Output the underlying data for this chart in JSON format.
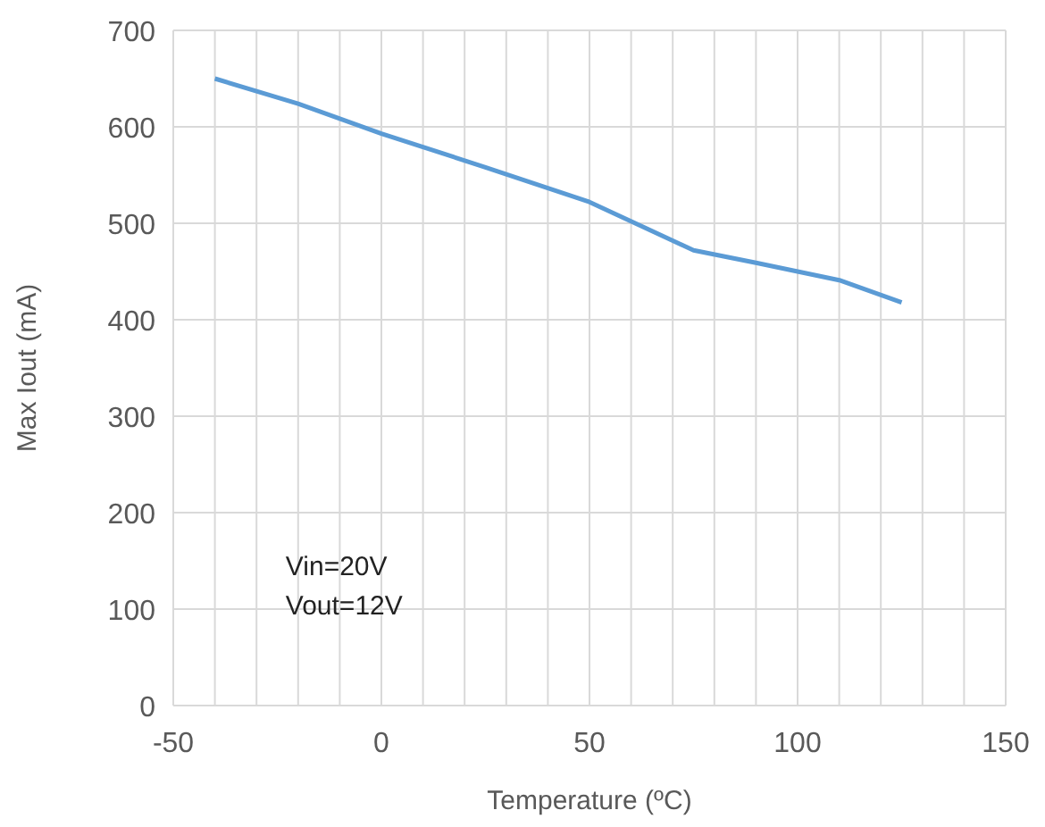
{
  "chart_data": {
    "type": "line",
    "xlabel": "Temperature (ºC)",
    "ylabel": "Max Iout (mA)",
    "x": [
      -40,
      -20,
      0,
      25,
      50,
      75,
      90,
      110,
      125
    ],
    "series": [
      {
        "color": "#5b9bd5",
        "values": [
          650,
          624,
          593,
          558,
          522,
          472,
          459,
          441,
          418
        ]
      }
    ],
    "xlim": [
      -50,
      150
    ],
    "xticks": [
      -50,
      {
        "value": -40,
        "label": null
      },
      {
        "value": -30,
        "label": null
      },
      {
        "value": -20,
        "label": null
      },
      {
        "value": -10,
        "label": null
      },
      0,
      {
        "value": 10,
        "label": null
      },
      {
        "value": 20,
        "label": null
      },
      {
        "value": 30,
        "label": null
      },
      {
        "value": 40,
        "label": null
      },
      50,
      {
        "value": 60,
        "label": null
      },
      {
        "value": 70,
        "label": null
      },
      {
        "value": 80,
        "label": null
      },
      {
        "value": 90,
        "label": null
      },
      100,
      {
        "value": 110,
        "label": null
      },
      {
        "value": 120,
        "label": null
      },
      {
        "value": 130,
        "label": null
      },
      {
        "value": 140,
        "label": null
      },
      150
    ],
    "ylim": [
      0,
      700
    ],
    "yticks": [
      0,
      100,
      200,
      300,
      400,
      500,
      600,
      700
    ],
    "grid": true,
    "line_style": "solid",
    "marker": "none",
    "annotations": [
      "Vin=20V",
      "Vout=12V"
    ]
  }
}
